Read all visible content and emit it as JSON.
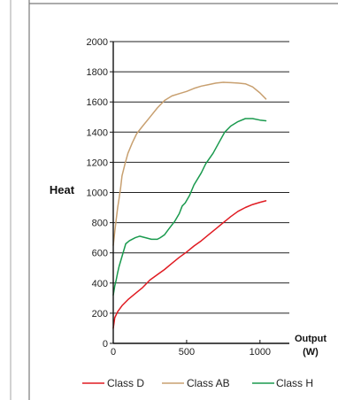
{
  "chart_data": {
    "type": "line",
    "ylabel": "Heat",
    "xlabel_line1": "Output",
    "xlabel_line2": "(W)",
    "xlim": [
      0,
      1200
    ],
    "ylim": [
      0,
      2000
    ],
    "x_ticks": [
      0,
      500,
      1000
    ],
    "y_ticks": [
      0,
      200,
      400,
      600,
      800,
      1000,
      1200,
      1400,
      1600,
      1800,
      2000
    ],
    "grid": "horizontal",
    "legend_position": "bottom",
    "series": [
      {
        "name": "Class D",
        "color": "#e01b22",
        "points": [
          [
            0,
            100
          ],
          [
            10,
            170
          ],
          [
            30,
            210
          ],
          [
            60,
            250
          ],
          [
            100,
            290
          ],
          [
            150,
            330
          ],
          [
            200,
            370
          ],
          [
            250,
            420
          ],
          [
            300,
            455
          ],
          [
            350,
            490
          ],
          [
            400,
            530
          ],
          [
            450,
            570
          ],
          [
            500,
            605
          ],
          [
            550,
            645
          ],
          [
            600,
            680
          ],
          [
            650,
            720
          ],
          [
            700,
            760
          ],
          [
            750,
            800
          ],
          [
            800,
            840
          ],
          [
            850,
            875
          ],
          [
            900,
            900
          ],
          [
            950,
            920
          ],
          [
            1000,
            935
          ],
          [
            1040,
            945
          ]
        ]
      },
      {
        "name": "Class AB",
        "color": "#c8a070",
        "points": [
          [
            0,
            650
          ],
          [
            10,
            740
          ],
          [
            20,
            820
          ],
          [
            30,
            900
          ],
          [
            40,
            960
          ],
          [
            50,
            1030
          ],
          [
            60,
            1110
          ],
          [
            80,
            1190
          ],
          [
            100,
            1260
          ],
          [
            130,
            1330
          ],
          [
            160,
            1390
          ],
          [
            200,
            1440
          ],
          [
            250,
            1500
          ],
          [
            300,
            1560
          ],
          [
            350,
            1610
          ],
          [
            400,
            1640
          ],
          [
            450,
            1655
          ],
          [
            500,
            1670
          ],
          [
            550,
            1690
          ],
          [
            600,
            1705
          ],
          [
            650,
            1715
          ],
          [
            700,
            1725
          ],
          [
            750,
            1730
          ],
          [
            800,
            1728
          ],
          [
            850,
            1725
          ],
          [
            900,
            1720
          ],
          [
            950,
            1700
          ],
          [
            1000,
            1660
          ],
          [
            1040,
            1620
          ]
        ]
      },
      {
        "name": "Class H",
        "color": "#1a9a4e",
        "points": [
          [
            0,
            320
          ],
          [
            10,
            380
          ],
          [
            20,
            420
          ],
          [
            30,
            470
          ],
          [
            40,
            510
          ],
          [
            55,
            560
          ],
          [
            70,
            610
          ],
          [
            85,
            660
          ],
          [
            110,
            680
          ],
          [
            150,
            700
          ],
          [
            180,
            710
          ],
          [
            220,
            700
          ],
          [
            260,
            690
          ],
          [
            300,
            690
          ],
          [
            320,
            700
          ],
          [
            350,
            720
          ],
          [
            380,
            760
          ],
          [
            420,
            810
          ],
          [
            450,
            860
          ],
          [
            470,
            910
          ],
          [
            490,
            930
          ],
          [
            520,
            980
          ],
          [
            550,
            1050
          ],
          [
            600,
            1130
          ],
          [
            630,
            1190
          ],
          [
            680,
            1260
          ],
          [
            720,
            1330
          ],
          [
            760,
            1400
          ],
          [
            800,
            1440
          ],
          [
            850,
            1470
          ],
          [
            900,
            1490
          ],
          [
            950,
            1490
          ],
          [
            1000,
            1480
          ],
          [
            1040,
            1475
          ]
        ]
      }
    ]
  }
}
